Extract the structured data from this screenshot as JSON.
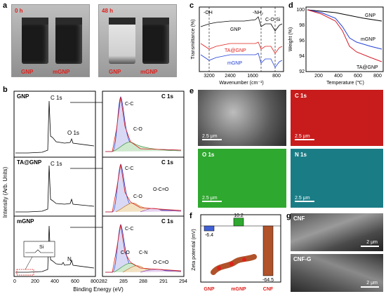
{
  "panels": {
    "a": {
      "letter": "a",
      "left_time": "0 h",
      "right_time": "48 h",
      "labels": [
        "GNP",
        "mGNP",
        "GNP",
        "mGNP"
      ],
      "label_color": "#e0201c"
    },
    "b": {
      "letter": "b",
      "ylabel": "Intensity (Arb. Units)",
      "xlabel": "Binding Energy (eV)",
      "rows": [
        {
          "name": "GNP",
          "survey_labels": [
            "C 1s",
            "O 1s"
          ],
          "hr_label": "C 1s",
          "peaks": [
            "C-C",
            "C-O"
          ]
        },
        {
          "name": "TA@GNP",
          "survey_labels": [
            "C 1s"
          ],
          "hr_label": "C 1s",
          "peaks": [
            "C-C",
            "C-O",
            "O-C=O"
          ]
        },
        {
          "name": "mGNP",
          "survey_labels": [
            "Si",
            "N"
          ],
          "hr_label": "C 1s",
          "peaks": [
            "C-C",
            "C-O",
            "C-N",
            "O-C=O"
          ]
        }
      ],
      "survey_ticks": [
        "0",
        "200",
        "400",
        "600",
        "800"
      ],
      "hr_ticks": [
        "282",
        "285",
        "288",
        "291",
        "294"
      ]
    },
    "c": {
      "letter": "c",
      "ylabel": "Transmittance (%)",
      "xlabel": "Wavenumber (cm⁻¹)",
      "annotations": [
        "-OH",
        "-NH₂",
        "C-O-Si"
      ],
      "series": [
        "GNP",
        "TA@GNP",
        "mGNP"
      ],
      "ticks": [
        "3200",
        "2400",
        "1600",
        "800"
      ]
    },
    "d": {
      "letter": "d",
      "ylabel": "Weight (%)",
      "xlabel": "Temperature (℃)",
      "yticks": [
        "100",
        "98",
        "96",
        "94",
        "92"
      ],
      "xticks": [
        "200",
        "400",
        "600",
        "800"
      ],
      "series": [
        {
          "name": "GNP",
          "color": "#000000"
        },
        {
          "name": "mGNP",
          "color": "#1f3fd6"
        },
        {
          "name": "TA@GNP",
          "color": "#d6202a"
        }
      ]
    },
    "e": {
      "letter": "e",
      "maps": [
        "C 1s",
        "O 1s",
        "N 1s"
      ],
      "scale": "2.5 μm"
    },
    "f": {
      "letter": "f",
      "ylabel": "Zeta potential (mV)",
      "categories": [
        "GNP",
        "mGNP",
        "CNF"
      ],
      "values": [
        "-6.4",
        "10.2",
        "-64.5"
      ],
      "label_color": "#e0201c"
    },
    "g": {
      "letter": "g",
      "images": [
        "CNF",
        "CNF-G"
      ],
      "scale": "2 μm"
    }
  }
}
